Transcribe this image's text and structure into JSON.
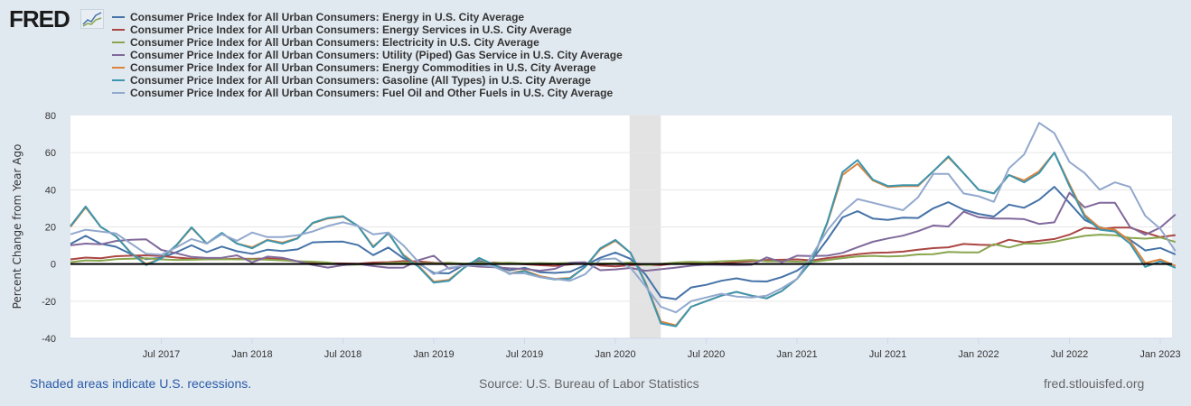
{
  "header": {
    "logo_text": "FRED"
  },
  "footer": {
    "recession_note": "Shaded areas indicate U.S. recessions.",
    "source": "Source: U.S. Bureau of Labor Statistics",
    "site": "fred.stlouisfed.org"
  },
  "chart_data": {
    "type": "line",
    "title": "",
    "xlabel": "",
    "ylabel": "Percent Change from Year Ago",
    "ylim": [
      -40,
      80
    ],
    "yticks": [
      -40,
      -20,
      0,
      20,
      40,
      60,
      80
    ],
    "x_start": "2017-01",
    "x_frequency": "monthly",
    "x_tick_labels": [
      {
        "label": "Jul 2017",
        "index": 6
      },
      {
        "label": "Jan 2018",
        "index": 12
      },
      {
        "label": "Jul 2018",
        "index": 18
      },
      {
        "label": "Jan 2019",
        "index": 24
      },
      {
        "label": "Jul 2019",
        "index": 30
      },
      {
        "label": "Jan 2020",
        "index": 36
      },
      {
        "label": "Jul 2020",
        "index": 42
      },
      {
        "label": "Jan 2021",
        "index": 48
      },
      {
        "label": "Jul 2021",
        "index": 54
      },
      {
        "label": "Jan 2022",
        "index": 60
      },
      {
        "label": "Jul 2022",
        "index": 66
      },
      {
        "label": "Jan 2023",
        "index": 72
      }
    ],
    "recessions": [
      {
        "start": "2020-02",
        "end": "2020-04",
        "start_index": 37,
        "end_index": 39
      }
    ],
    "grid": true,
    "legend_placement": "top",
    "series": [
      {
        "name": "Consumer Price Index for All Urban Consumers: Energy in U.S. City Average",
        "color": "#4572a7",
        "values": [
          10.8,
          15.2,
          10.9,
          9.3,
          5.4,
          2.6,
          3.4,
          6.4,
          10.1,
          6.4,
          9.4,
          6.9,
          5.5,
          7.7,
          7.0,
          7.9,
          11.7,
          12.0,
          12.1,
          10.2,
          4.8,
          8.9,
          3.1,
          0.3,
          -4.8,
          -5.0,
          -0.4,
          1.7,
          -0.6,
          -3.4,
          -2.0,
          -4.4,
          -4.8,
          -4.2,
          -0.6,
          3.4,
          6.2,
          2.8,
          -5.7,
          -17.7,
          -18.9,
          -12.6,
          -11.2,
          -9.0,
          -7.7,
          -9.2,
          -9.4,
          -7.0,
          -3.6,
          2.4,
          13.2,
          25.1,
          28.5,
          24.5,
          23.8,
          25.0,
          24.8,
          30.0,
          33.3,
          29.3,
          27.0,
          25.6,
          32.0,
          30.3,
          34.6,
          41.6,
          32.9,
          23.8,
          19.8,
          17.6,
          13.1,
          7.3,
          8.7,
          5.2
        ]
      },
      {
        "name": "Consumer Price Index for All Urban Consumers: Energy Services in U.S. City Average",
        "color": "#aa4643",
        "values": [
          2.5,
          3.5,
          3.1,
          4.2,
          4.5,
          4.7,
          4.3,
          3.5,
          2.9,
          2.5,
          2.6,
          2.9,
          2.8,
          3.0,
          2.7,
          1.5,
          0.6,
          0.5,
          0.3,
          0.2,
          0.8,
          1.0,
          1.6,
          1.4,
          0.7,
          0.6,
          -0.3,
          0.2,
          0.8,
          0.3,
          -0.1,
          -0.6,
          -1.0,
          -0.2,
          0.6,
          -0.8,
          -1.3,
          -0.6,
          -0.3,
          -0.6,
          0.4,
          0.6,
          0.4,
          0.3,
          1.1,
          1.5,
          2.2,
          2.3,
          2.5,
          2.0,
          3.2,
          4.2,
          5.3,
          6.0,
          6.2,
          6.7,
          7.7,
          8.6,
          9.0,
          10.8,
          10.4,
          10.2,
          13.1,
          11.7,
          12.5,
          13.5,
          15.8,
          19.5,
          18.8,
          19.6,
          19.6,
          17.0,
          14.5,
          15.6
        ]
      },
      {
        "name": "Consumer Price Index for All Urban Consumers: Electricity in U.S. City Average",
        "color": "#89a54e",
        "values": [
          1.0,
          2.0,
          1.8,
          2.6,
          2.9,
          3.1,
          2.5,
          2.2,
          2.3,
          2.5,
          2.6,
          2.5,
          2.5,
          2.3,
          2.0,
          1.5,
          1.3,
          0.8,
          -0.5,
          -0.3,
          0.0,
          0.5,
          0.8,
          0.5,
          0.3,
          0.7,
          0.2,
          0.7,
          0.5,
          0.7,
          0.3,
          0.5,
          0.3,
          0.6,
          0.5,
          0.3,
          0.3,
          0.8,
          -0.5,
          0.1,
          0.8,
          1.2,
          1.0,
          1.5,
          1.8,
          2.2,
          1.5,
          1.5,
          1.3,
          1.1,
          2.1,
          3.2,
          4.1,
          4.4,
          4.1,
          4.3,
          5.2,
          5.3,
          6.5,
          6.3,
          6.3,
          10.7,
          8.9,
          11.0,
          11.0,
          12.0,
          13.7,
          15.2,
          15.8,
          15.5,
          14.1,
          13.7,
          14.3,
          11.9
        ]
      },
      {
        "name": "Consumer Price Index for All Urban Consumers: Utility (Piped) Gas Service in U.S. City Average",
        "color": "#80699b",
        "values": [
          10.1,
          11.0,
          10.6,
          12.4,
          13.1,
          13.3,
          7.6,
          5.8,
          3.8,
          3.3,
          3.4,
          4.7,
          0.9,
          4.0,
          3.4,
          1.5,
          -0.5,
          -1.9,
          -0.6,
          0.1,
          -1.1,
          -2.0,
          -1.9,
          2.1,
          4.5,
          -2.5,
          -0.8,
          -1.4,
          -1.7,
          -2.3,
          -2.6,
          -3.6,
          -2.6,
          0.7,
          1.0,
          -3.3,
          -2.9,
          -2.1,
          -3.6,
          -2.8,
          -1.9,
          -0.9,
          -0.3,
          -0.4,
          -0.5,
          -0.4,
          3.6,
          1.0,
          4.5,
          4.3,
          4.5,
          6.0,
          9.0,
          12.0,
          13.8,
          15.3,
          17.7,
          20.8,
          20.2,
          28.2,
          25.2,
          24.5,
          24.5,
          24.2,
          21.6,
          22.5,
          38.4,
          30.5,
          33.0,
          33.0,
          20.0,
          15.8,
          19.6,
          26.7
        ]
      },
      {
        "name": "Consumer Price Index for All Urban Consumers: Energy Commodities in U.S. City Average",
        "color": "#db843d",
        "values": [
          20.0,
          30.5,
          20.0,
          15.0,
          6.0,
          0.0,
          3.0,
          10.0,
          19.5,
          11.0,
          16.5,
          11.0,
          9.0,
          13.0,
          11.5,
          14.0,
          22.0,
          24.5,
          25.5,
          20.5,
          9.5,
          16.5,
          5.0,
          -1.0,
          -9.5,
          -8.5,
          -2.0,
          3.0,
          -0.5,
          -5.0,
          -3.5,
          -6.5,
          -8.0,
          -7.5,
          -1.5,
          8.0,
          12.5,
          6.0,
          -10.0,
          -31.0,
          -33.0,
          -23.0,
          -20.0,
          -17.0,
          -15.0,
          -17.0,
          -18.5,
          -14.5,
          -8.0,
          2.0,
          22.0,
          48.0,
          54.0,
          45.0,
          41.5,
          42.0,
          42.0,
          50.0,
          57.5,
          49.0,
          40.0,
          38.0,
          48.0,
          45.0,
          50.0,
          60.0,
          43.0,
          26.5,
          19.5,
          18.5,
          12.5,
          0.5,
          2.5,
          -1.0
        ]
      },
      {
        "name": "Consumer Price Index for All Urban Consumers: Gasoline (All Types) in U.S. City Average",
        "color": "#3d96ae",
        "values": [
          20.5,
          31.0,
          20.0,
          15.0,
          5.8,
          -0.5,
          3.0,
          10.3,
          19.8,
          11.0,
          16.8,
          11.0,
          8.5,
          12.8,
          11.0,
          13.8,
          22.2,
          24.8,
          25.8,
          20.5,
          9.0,
          16.8,
          4.5,
          -1.5,
          -10.0,
          -9.0,
          -2.0,
          3.3,
          -0.5,
          -5.3,
          -3.8,
          -7.0,
          -8.3,
          -7.8,
          -1.5,
          8.5,
          13.0,
          6.0,
          -10.5,
          -32.0,
          -33.5,
          -23.0,
          -20.0,
          -17.0,
          -15.0,
          -17.0,
          -18.5,
          -14.5,
          -8.0,
          2.0,
          22.5,
          49.5,
          56.0,
          45.5,
          42.0,
          42.5,
          42.5,
          50.0,
          58.0,
          49.0,
          40.0,
          38.0,
          48.0,
          44.0,
          49.0,
          60.0,
          42.0,
          25.5,
          18.5,
          17.5,
          11.0,
          -1.5,
          1.5,
          -2.0
        ]
      },
      {
        "name": "Consumer Price Index for All Urban Consumers: Fuel Oil and Other Fuels in U.S. City Average",
        "color": "#92a8cd",
        "values": [
          16.0,
          18.5,
          17.5,
          16.5,
          11.0,
          5.5,
          5.0,
          9.0,
          13.5,
          11.0,
          16.0,
          12.5,
          17.0,
          14.5,
          14.5,
          15.5,
          17.5,
          20.5,
          22.5,
          20.5,
          16.0,
          17.0,
          10.0,
          1.0,
          -5.5,
          -2.0,
          -1.0,
          -0.5,
          -1.5,
          -5.0,
          -5.0,
          -7.0,
          -8.0,
          -9.0,
          -5.5,
          2.5,
          3.0,
          -2.0,
          -12.0,
          -23.0,
          -26.0,
          -20.0,
          -18.0,
          -16.0,
          -17.5,
          -18.0,
          -17.0,
          -13.0,
          -8.0,
          5.0,
          18.0,
          28.0,
          35.0,
          33.0,
          31.0,
          29.0,
          36.0,
          48.5,
          48.5,
          38.0,
          36.5,
          33.5,
          51.5,
          59.0,
          76.0,
          70.5,
          55.0,
          49.0,
          40.0,
          44.0,
          41.5,
          26.0,
          19.0,
          7.0
        ]
      }
    ]
  }
}
